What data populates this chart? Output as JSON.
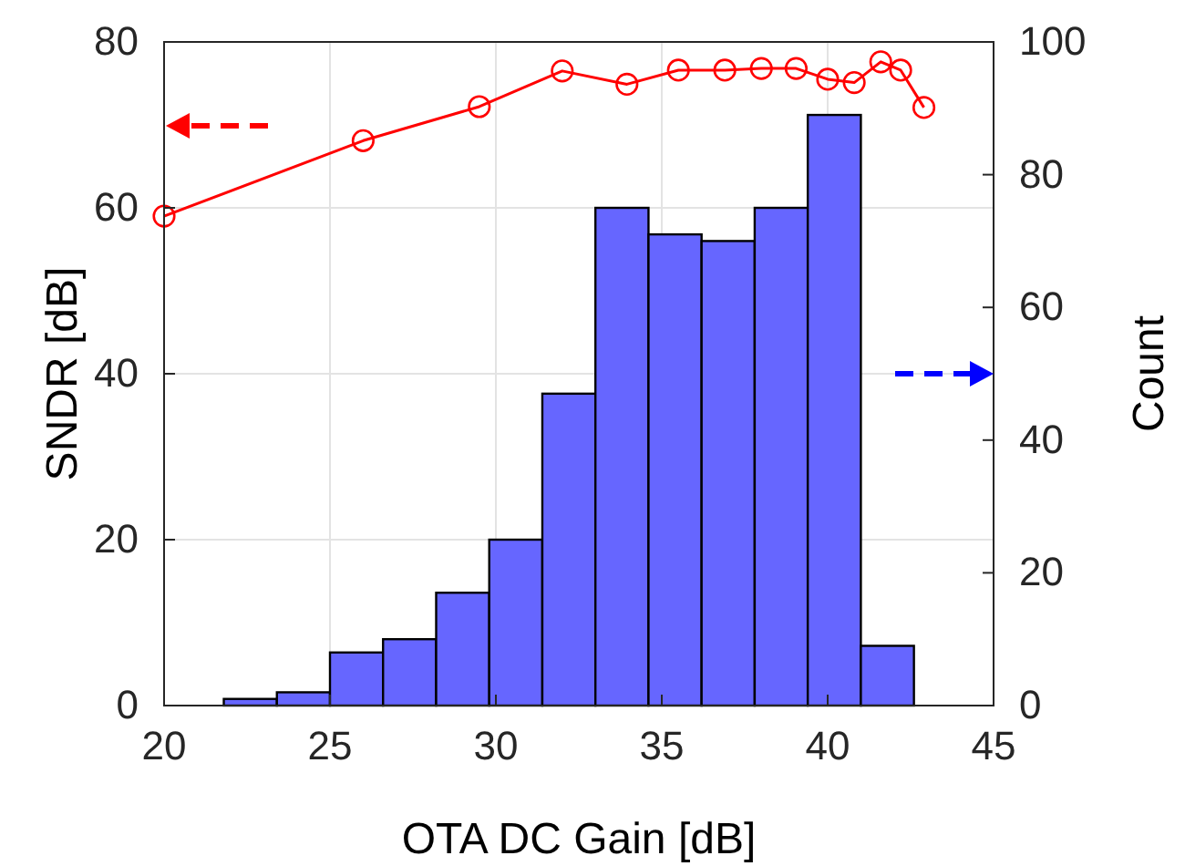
{
  "chart_data": {
    "type": "histogram",
    "xlabel": "OTA DC Gain [dB]",
    "ylabel": "SNDR [dB]",
    "y2label": "Count",
    "xlim": [
      20,
      45
    ],
    "xticks": [
      20,
      25,
      30,
      35,
      40,
      45
    ],
    "ylim": [
      0,
      80
    ],
    "yticks": [
      0,
      20,
      40,
      60,
      80
    ],
    "y2lim": [
      0,
      100
    ],
    "y2ticks": [
      0,
      20,
      40,
      60,
      80,
      100
    ],
    "grid": true,
    "series": [
      {
        "axis": "y2",
        "color": "#6666ff",
        "bins": [
          21.8,
          23.4,
          25.0,
          26.6,
          28.2,
          29.8,
          31.4,
          33.0,
          34.6,
          36.2,
          37.8,
          39.4,
          41.0,
          42.6
        ],
        "values": [
          1,
          2,
          8,
          10,
          17,
          25,
          47,
          75,
          71,
          70,
          75,
          89,
          9
        ]
      },
      {
        "type": "line",
        "color": "#ff0000",
        "marker": "circle",
        "x": [
          20,
          26.0,
          29.5,
          32.0,
          33.95,
          35.5,
          36.9,
          38.0,
          39.05,
          40.0,
          40.8,
          41.6,
          42.2,
          42.9
        ],
        "values": [
          59,
          68.1,
          72.2,
          76.5,
          74.9,
          76.6,
          76.6,
          76.8,
          76.8,
          75.5,
          75.1,
          77.6,
          76.6,
          72.1
        ]
      }
    ]
  }
}
